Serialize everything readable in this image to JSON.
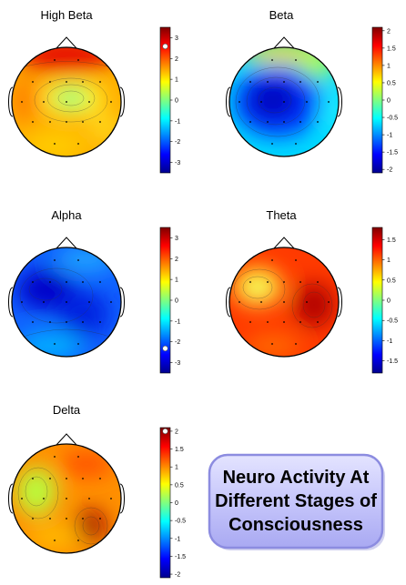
{
  "maps": [
    {
      "id": "high-beta",
      "title": "High Beta",
      "colorbar": {
        "min": -3.5,
        "max": 3.5,
        "ticks": [
          3,
          2,
          1,
          0,
          -1,
          -2,
          -3
        ],
        "tick_labels": [
          "3",
          "2",
          "1",
          "0",
          "-1",
          "-2",
          "-3"
        ]
      }
    },
    {
      "id": "beta",
      "title": "Beta",
      "colorbar": {
        "min": -2.1,
        "max": 2.1,
        "ticks": [
          2,
          1.5,
          1,
          0.5,
          0,
          -0.5,
          -1,
          -1.5,
          -2
        ],
        "tick_labels": [
          "2",
          "1.5",
          "1",
          "0.5",
          "0",
          "-0.5",
          "-1",
          "-1.5",
          "-2"
        ]
      }
    },
    {
      "id": "alpha",
      "title": "Alpha",
      "colorbar": {
        "min": -3.5,
        "max": 3.5,
        "ticks": [
          3,
          2,
          1,
          0,
          -1,
          -2,
          -3
        ],
        "tick_labels": [
          "3",
          "2",
          "1",
          "0",
          "-1",
          "-2",
          "-3"
        ]
      }
    },
    {
      "id": "theta",
      "title": "Theta",
      "colorbar": {
        "min": -1.8,
        "max": 1.8,
        "ticks": [
          1.5,
          1,
          0.5,
          0,
          -0.5,
          -1,
          -1.5
        ],
        "tick_labels": [
          "1.5",
          "1",
          "0.5",
          "0",
          "-0.5",
          "-1",
          "-1.5"
        ]
      }
    },
    {
      "id": "delta",
      "title": "Delta",
      "colorbar": {
        "min": -2.1,
        "max": 2.1,
        "ticks": [
          2,
          1.5,
          1,
          0.5,
          0,
          -0.5,
          -1,
          -1.5,
          -2
        ],
        "tick_labels": [
          "2",
          "1.5",
          "1",
          "0.5",
          "0",
          "-0.5",
          "-1",
          "-1.5",
          "-2"
        ]
      }
    }
  ],
  "caption": {
    "line1": "Neuro Activity At",
    "line2": "Different Stages of",
    "line3": "Consciousness"
  },
  "colors": {
    "caption_bg": "#c9c9ff",
    "caption_border": "#8c8ce0"
  }
}
